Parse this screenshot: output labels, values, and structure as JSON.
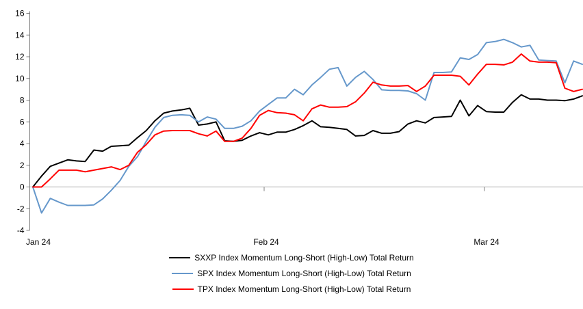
{
  "chart_data": {
    "type": "line",
    "title": "",
    "x_axis": {
      "tick_labels": [
        "Jan 24",
        "Feb 24",
        "Mar 24"
      ],
      "gridlines": false
    },
    "y_axis": {
      "min": -4,
      "max": 16,
      "step": 2,
      "tick_labels": [
        "16",
        "14",
        "12",
        "10",
        "8",
        "6",
        "4",
        "2",
        "0",
        "-2",
        "-4"
      ],
      "gridlines": false,
      "zero_line": true
    },
    "legend_position": "bottom",
    "series": [
      {
        "name": "SXXP Index Momentum Long-Short (High-Low) Total Return",
        "color": "#000000",
        "values": [
          0,
          1.0,
          1.9,
          2.2,
          2.5,
          2.4,
          2.35,
          3.4,
          3.3,
          3.75,
          3.8,
          3.85,
          4.55,
          5.2,
          6.1,
          6.8,
          7.0,
          7.1,
          7.25,
          5.7,
          5.8,
          6.0,
          4.25,
          4.2,
          4.3,
          4.7,
          5.0,
          4.8,
          5.05,
          5.05,
          5.3,
          5.65,
          6.1,
          5.55,
          5.5,
          5.4,
          5.3,
          4.7,
          4.75,
          5.2,
          4.95,
          4.95,
          5.1,
          5.8,
          6.1,
          5.9,
          6.4,
          6.45,
          6.5,
          8.0,
          6.55,
          7.5,
          6.95,
          6.9,
          6.9,
          7.8,
          8.5,
          8.1,
          8.1,
          8.0,
          8.0,
          7.95,
          8.1,
          8.4
        ]
      },
      {
        "name": "SPX Index Momentum Long-Short (High-Low) Total Return",
        "color": "#6698cb",
        "values": [
          0,
          -2.4,
          -1.05,
          -1.4,
          -1.7,
          -1.7,
          -1.7,
          -1.65,
          -1.1,
          -0.3,
          0.6,
          1.9,
          2.8,
          4.2,
          5.5,
          6.4,
          6.6,
          6.65,
          6.6,
          6.0,
          6.45,
          6.25,
          5.4,
          5.4,
          5.6,
          6.1,
          7.0,
          7.6,
          8.2,
          8.2,
          9.0,
          8.5,
          9.4,
          10.1,
          10.85,
          11.0,
          9.3,
          10.1,
          10.65,
          9.9,
          8.95,
          8.9,
          8.9,
          8.85,
          8.6,
          8.0,
          10.55,
          10.55,
          10.6,
          11.9,
          11.75,
          12.2,
          13.3,
          13.4,
          13.6,
          13.3,
          12.9,
          13.05,
          11.7,
          11.65,
          11.6,
          9.6,
          11.6,
          11.3
        ]
      },
      {
        "name": "TPX Index Momentum Long-Short (High-Low) Total Return",
        "color": "#ff0000",
        "values": [
          0,
          0,
          0.75,
          1.55,
          1.55,
          1.55,
          1.4,
          1.55,
          1.7,
          1.85,
          1.6,
          2.0,
          3.2,
          3.9,
          4.8,
          5.15,
          5.2,
          5.2,
          5.2,
          4.9,
          4.7,
          5.15,
          4.2,
          4.2,
          4.5,
          5.4,
          6.6,
          7.05,
          6.85,
          6.8,
          6.65,
          6.1,
          7.2,
          7.55,
          7.35,
          7.35,
          7.4,
          7.85,
          8.65,
          9.65,
          9.4,
          9.3,
          9.3,
          9.35,
          8.8,
          9.3,
          10.3,
          10.3,
          10.3,
          10.2,
          9.4,
          10.4,
          11.3,
          11.3,
          11.25,
          11.5,
          12.25,
          11.6,
          11.5,
          11.5,
          11.45,
          9.1,
          8.8,
          9.0
        ]
      }
    ],
    "axis_color": "#808080",
    "zero_line_color": "#a6a6a6"
  }
}
